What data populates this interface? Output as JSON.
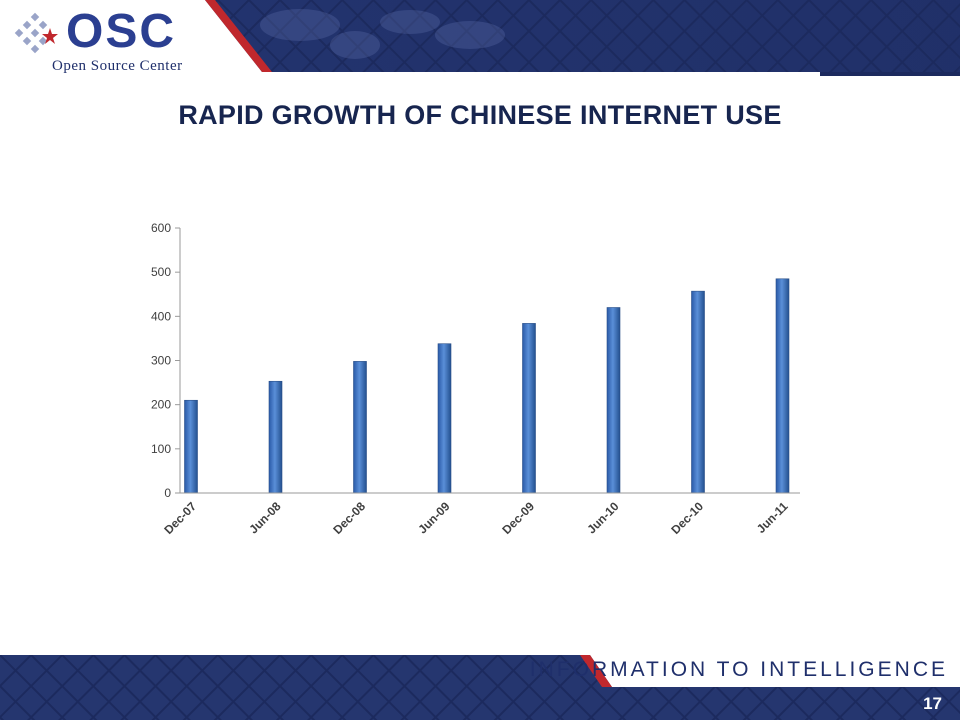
{
  "header": {
    "logo_text": "OSC",
    "logo_subtitle": "Open Source Center"
  },
  "slide": {
    "title": "RAPID GROWTH OF CHINESE INTERNET USE",
    "page_number": "17"
  },
  "footer": {
    "tagline": "INFORMATION TO INTELLIGENCE"
  },
  "colors": {
    "brand_blue": "#2b3f91",
    "brand_red": "#c0282d",
    "bar_blue": "#3f72c2",
    "banner_dark": "#1c2a5e"
  },
  "chart_data": {
    "type": "bar",
    "title": "",
    "xlabel": "",
    "ylabel": "",
    "categories": [
      "Dec-07",
      "Jun-08",
      "Dec-08",
      "Jun-09",
      "Dec-09",
      "Jun-10",
      "Dec-10",
      "Jun-11"
    ],
    "values": [
      210,
      253,
      298,
      338,
      384,
      420,
      457,
      485
    ],
    "ylim": [
      0,
      600
    ],
    "yticks": [
      0,
      100,
      200,
      300,
      400,
      500,
      600
    ],
    "grid": false,
    "legend": "none"
  }
}
